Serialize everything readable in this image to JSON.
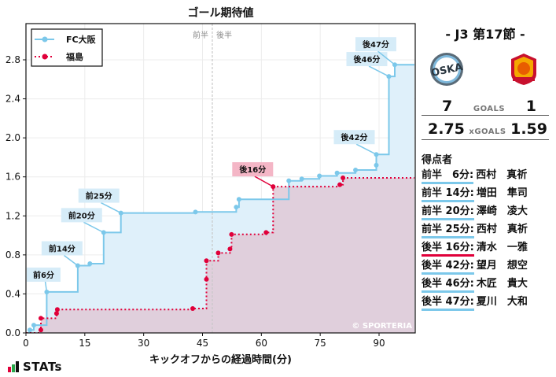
{
  "chart_data": {
    "type": "line",
    "title": "ゴール期待値",
    "xlabel": "キックオフからの経過時間(分)",
    "ylabel": "",
    "xlim": [
      0,
      99
    ],
    "ylim": [
      0,
      2.95
    ],
    "x_ticks": [
      0,
      15,
      30,
      45,
      60,
      75,
      90
    ],
    "y_ticks": [
      0.0,
      0.4,
      0.8,
      1.2,
      1.6,
      2.0,
      2.4,
      2.8
    ],
    "y_tick_labels": [
      "0.0",
      "0.4",
      "0.8",
      "1.2",
      "1.6",
      "2.0",
      "2.4",
      "2.8"
    ],
    "halftime_x": 47.5,
    "halftime_labels": [
      "前半",
      "後半"
    ],
    "grid": true,
    "legend_position": "upper left",
    "watermark": "© SPORTERIA",
    "step": true,
    "series": [
      {
        "name": "FC大阪",
        "color": "#7cc8ea",
        "fill": "#dff0fa",
        "style": "solid",
        "points": [
          [
            1,
            0.03
          ],
          [
            2,
            0.08
          ],
          [
            5.3,
            0.42
          ],
          [
            13.2,
            0.69
          ],
          [
            16.3,
            0.71
          ],
          [
            19.8,
            1.03
          ],
          [
            24.2,
            1.23
          ],
          [
            43.2,
            1.24
          ],
          [
            53.6,
            1.29
          ],
          [
            54.3,
            1.37
          ],
          [
            67,
            1.56
          ],
          [
            70.3,
            1.58
          ],
          [
            74.8,
            1.61
          ],
          [
            79.3,
            1.64
          ],
          [
            84,
            1.67
          ],
          [
            89.3,
            1.72
          ],
          [
            89.3,
            1.83
          ],
          [
            92.5,
            2.63
          ],
          [
            94,
            2.75
          ]
        ]
      },
      {
        "name": "福島",
        "color": "#e0003a",
        "fill": "#e0c9d6",
        "style": "dotted",
        "points": [
          [
            3.8,
            0.03
          ],
          [
            3.8,
            0.15
          ],
          [
            7.8,
            0.2
          ],
          [
            8,
            0.24
          ],
          [
            42.5,
            0.25
          ],
          [
            46,
            0.55
          ],
          [
            46,
            0.74
          ],
          [
            49,
            0.82
          ],
          [
            52,
            0.86
          ],
          [
            52.4,
            1.01
          ],
          [
            61.2,
            1.03
          ],
          [
            63,
            1.5
          ],
          [
            80,
            1.52
          ],
          [
            80.8,
            1.59
          ]
        ]
      }
    ],
    "annotations": [
      {
        "text": "前6分",
        "team": "home",
        "x": 5.3,
        "y": 0.42
      },
      {
        "text": "前14分",
        "team": "home",
        "x": 13.2,
        "y": 0.69
      },
      {
        "text": "前20分",
        "team": "home",
        "x": 19.8,
        "y": 1.03
      },
      {
        "text": "前25分",
        "team": "home",
        "x": 24.2,
        "y": 1.23
      },
      {
        "text": "後16分",
        "team": "away",
        "x": 63,
        "y": 1.5
      },
      {
        "text": "後42分",
        "team": "home",
        "x": 89.3,
        "y": 1.83
      },
      {
        "text": "後46分",
        "team": "home",
        "x": 92.5,
        "y": 2.63
      },
      {
        "text": "後47分",
        "team": "home",
        "x": 94,
        "y": 2.75
      }
    ]
  },
  "match": {
    "title": "- J3 第17節 -",
    "home_team": "FC大阪",
    "away_team": "福島",
    "home_crest": "fc-osaka-crest",
    "away_crest": "fukushima-united-crest",
    "goals_label": "GOALS",
    "home_goals": "7",
    "away_goals": "1",
    "xgoals_label": "xGOALS",
    "home_xg": "2.75",
    "away_xg": "1.59"
  },
  "scorers": {
    "title": "得点者",
    "items": [
      {
        "time": "前半　6分:",
        "name": "西村　真祈",
        "team": "home"
      },
      {
        "time": "前半 14分:",
        "name": "増田　隼司",
        "team": "home"
      },
      {
        "time": "前半 20分:",
        "name": "澤崎　凌大",
        "team": "home"
      },
      {
        "time": "前半 25分:",
        "name": "西村　真祈",
        "team": "home"
      },
      {
        "time": "後半 16分:",
        "name": "清水　一雅",
        "team": "away"
      },
      {
        "time": "後半 42分:",
        "name": "望月　想空",
        "team": "home"
      },
      {
        "time": "後半 46分:",
        "name": "木匠　貴大",
        "team": "home"
      },
      {
        "time": "後半 47分:",
        "name": "夏川　大和",
        "team": "home"
      }
    ]
  },
  "footer": {
    "logo_text": "STATs"
  },
  "colors": {
    "home": "#7cc8ea",
    "away": "#e0003a",
    "home_label_bg": "#d6ecf8",
    "away_label_bg": "#f4b6c6"
  }
}
